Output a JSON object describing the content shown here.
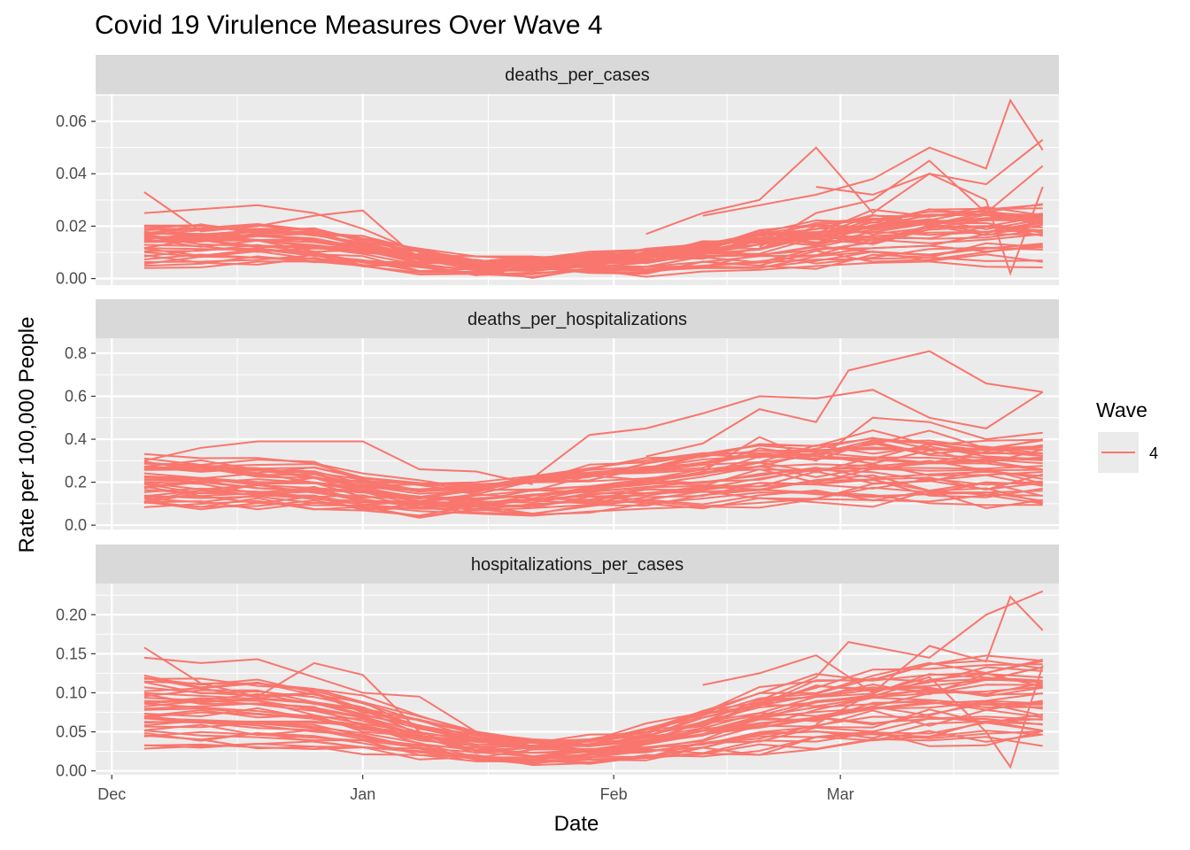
{
  "chart_data": {
    "type": "line",
    "title": "Covid 19 Virulence Measures Over Wave 4",
    "xlabel": "Date",
    "ylabel": "Rate per 100,000 People",
    "x_ticks": [
      "Dec",
      "Jan",
      "Feb",
      "Mar"
    ],
    "x_range_days": [
      -2,
      117
    ],
    "x_tick_days": [
      0,
      31,
      62,
      90
    ],
    "grid": true,
    "legend": {
      "title": "Wave",
      "position": "right",
      "entries": [
        {
          "label": "4",
          "color": "#F8766D"
        }
      ]
    },
    "series_color": "#F8766D",
    "x_dates": [
      4,
      11,
      18,
      25,
      31,
      38,
      45,
      52,
      59,
      66,
      73,
      80,
      87,
      94,
      101,
      108,
      115
    ],
    "panels": [
      {
        "name": "deaths_per_cases",
        "ylim": [
          -0.0025,
          0.0705
        ],
        "y_ticks": [
          0,
          0.02,
          0.04,
          0.06
        ],
        "y_tick_labels": [
          "0.00",
          "0.02",
          "0.04",
          "0.06"
        ],
        "typical": [
          0.012,
          0.012,
          0.012,
          0.011,
          0.009,
          0.006,
          0.004,
          0.004,
          0.005,
          0.006,
          0.008,
          0.01,
          0.012,
          0.014,
          0.015,
          0.016,
          0.016
        ],
        "outliers": [
          {
            "x": [
              4,
              11,
              18,
              25,
              31,
              38
            ],
            "y": [
              0.033,
              0.018,
              0.02,
              0.024,
              0.026,
              0.007
            ]
          },
          {
            "x": [
              4,
              18,
              25,
              31,
              38,
              45
            ],
            "y": [
              0.025,
              0.028,
              0.025,
              0.019,
              0.01,
              0.005
            ]
          },
          {
            "x": [
              66,
              73,
              80,
              87,
              94,
              101,
              108,
              115
            ],
            "y": [
              0.017,
              0.025,
              0.03,
              0.05,
              0.025,
              0.04,
              0.036,
              0.053
            ]
          },
          {
            "x": [
              73,
              80,
              87,
              94,
              101,
              108,
              111,
              115
            ],
            "y": [
              0.024,
              0.028,
              0.032,
              0.038,
              0.05,
              0.042,
              0.068,
              0.049
            ]
          },
          {
            "x": [
              80,
              87,
              94,
              101,
              108,
              115
            ],
            "y": [
              0.012,
              0.025,
              0.03,
              0.045,
              0.025,
              0.043
            ]
          },
          {
            "x": [
              87,
              94,
              101,
              108,
              111,
              115
            ],
            "y": [
              0.035,
              0.032,
              0.04,
              0.03,
              0.002,
              0.035
            ]
          }
        ]
      },
      {
        "name": "deaths_per_hospitalizations",
        "ylim": [
          -0.02,
          0.87
        ],
        "y_ticks": [
          0,
          0.2,
          0.4,
          0.6,
          0.8
        ],
        "y_tick_labels": [
          "0.0",
          "0.2",
          "0.4",
          "0.6",
          "0.8"
        ],
        "typical": [
          0.19,
          0.19,
          0.18,
          0.17,
          0.14,
          0.12,
          0.12,
          0.14,
          0.17,
          0.19,
          0.21,
          0.23,
          0.24,
          0.25,
          0.25,
          0.24,
          0.24
        ],
        "outliers": [
          {
            "x": [
              4,
              11,
              18,
              25,
              31,
              38,
              45,
              52
            ],
            "y": [
              0.3,
              0.36,
              0.39,
              0.39,
              0.39,
              0.26,
              0.25,
              0.19
            ]
          },
          {
            "x": [
              52,
              59,
              66,
              73,
              80,
              87,
              94,
              101,
              108,
              115
            ],
            "y": [
              0.22,
              0.42,
              0.45,
              0.52,
              0.6,
              0.59,
              0.63,
              0.5,
              0.45,
              0.62
            ]
          },
          {
            "x": [
              66,
              73,
              80,
              87,
              91,
              101,
              108,
              115
            ],
            "y": [
              0.32,
              0.38,
              0.54,
              0.48,
              0.72,
              0.81,
              0.66,
              0.62
            ]
          },
          {
            "x": [
              73,
              80,
              87,
              94,
              101,
              108,
              115
            ],
            "y": [
              0.25,
              0.41,
              0.3,
              0.5,
              0.48,
              0.4,
              0.43
            ]
          }
        ]
      },
      {
        "name": "hospitalizations_per_cases",
        "ylim": [
          -0.005,
          0.24
        ],
        "y_ticks": [
          0,
          0.05,
          0.1,
          0.15,
          0.2
        ],
        "y_tick_labels": [
          "0.00",
          "0.05",
          "0.10",
          "0.15",
          "0.20"
        ],
        "typical": [
          0.075,
          0.072,
          0.07,
          0.065,
          0.055,
          0.04,
          0.028,
          0.025,
          0.027,
          0.035,
          0.048,
          0.06,
          0.07,
          0.078,
          0.082,
          0.085,
          0.085
        ],
        "outliers": [
          {
            "x": [
              4,
              11,
              18,
              25,
              31,
              38
            ],
            "y": [
              0.158,
              0.112,
              0.095,
              0.138,
              0.123,
              0.05
            ]
          },
          {
            "x": [
              4,
              11,
              18,
              25,
              31,
              38,
              45
            ],
            "y": [
              0.145,
              0.138,
              0.143,
              0.12,
              0.1,
              0.095,
              0.05
            ]
          },
          {
            "x": [
              73,
              80,
              87,
              94,
              101,
              108,
              111,
              115
            ],
            "y": [
              0.11,
              0.125,
              0.148,
              0.1,
              0.16,
              0.14,
              0.223,
              0.18
            ]
          },
          {
            "x": [
              80,
              87,
              91,
              101,
              108,
              115
            ],
            "y": [
              0.09,
              0.12,
              0.165,
              0.145,
              0.2,
              0.23
            ]
          },
          {
            "x": [
              87,
              94,
              101,
              108,
              111,
              115
            ],
            "y": [
              0.06,
              0.1,
              0.12,
              0.05,
              0.005,
              0.135
            ]
          }
        ]
      }
    ]
  }
}
